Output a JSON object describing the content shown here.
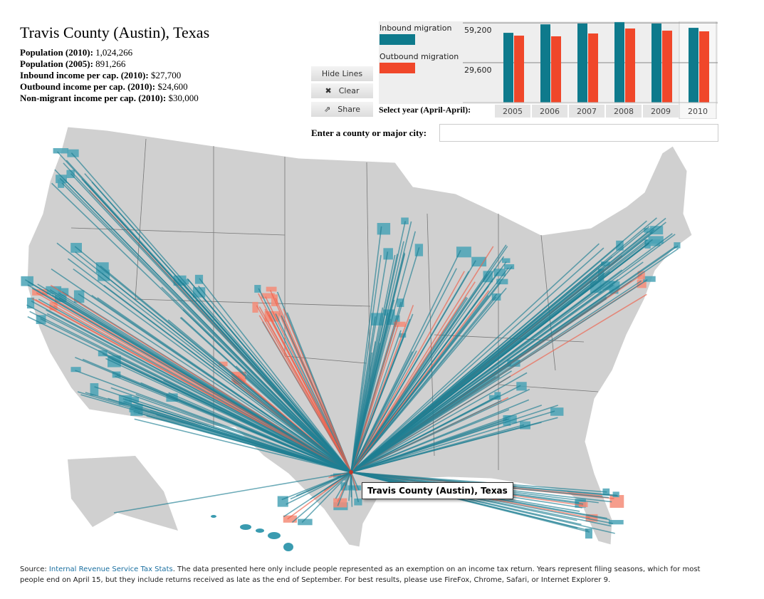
{
  "header": {
    "title": "Travis County (Austin), Texas"
  },
  "stats": [
    {
      "label": "Population (2010):",
      "value": "1,024,266"
    },
    {
      "label": "Population (2005):",
      "value": "891,266"
    },
    {
      "label": "Inbound income per cap. (2010):",
      "value": "$27,700"
    },
    {
      "label": "Outbound income per cap. (2010):",
      "value": "$24,600"
    },
    {
      "label": "Non-migrant income per cap. (2010):",
      "value": "$30,000"
    }
  ],
  "buttons": [
    "Hide Lines",
    "Clear",
    "Share"
  ],
  "chart_data": {
    "type": "bar",
    "categories": [
      "2005",
      "2006",
      "2007",
      "2008",
      "2009",
      "2010"
    ],
    "series": [
      {
        "name": "Inbound migration",
        "color": "#0e7a8c",
        "values": [
          51800,
          58100,
          58700,
          59700,
          58700,
          55500
        ]
      },
      {
        "name": "Outbound migration",
        "color": "#f0472a",
        "values": [
          49700,
          49200,
          51300,
          55000,
          53400,
          52900
        ]
      }
    ],
    "ylim": [
      0,
      60300
    ],
    "yticks": [
      {
        "value": 29600,
        "label": "29,600"
      },
      {
        "value": 59200,
        "label": "59,200"
      }
    ],
    "category_label": "Select year (April-April):",
    "selected_category": "2010"
  },
  "search": {
    "label": "Enter a county or major city:"
  },
  "tooltip": "Travis County (Austin), Texas",
  "source": {
    "label": "Source:",
    "link": "Internal Revenue Service Tax Stats",
    "text": ". The data presented here only include people represented as an exemption on an income tax return. Years represent filing seasons, which for most people end on April 15, but they include returns received as late as the end of September. For best results, please use FireFox, Chrome, Safari, or Internet Explorer 9."
  }
}
